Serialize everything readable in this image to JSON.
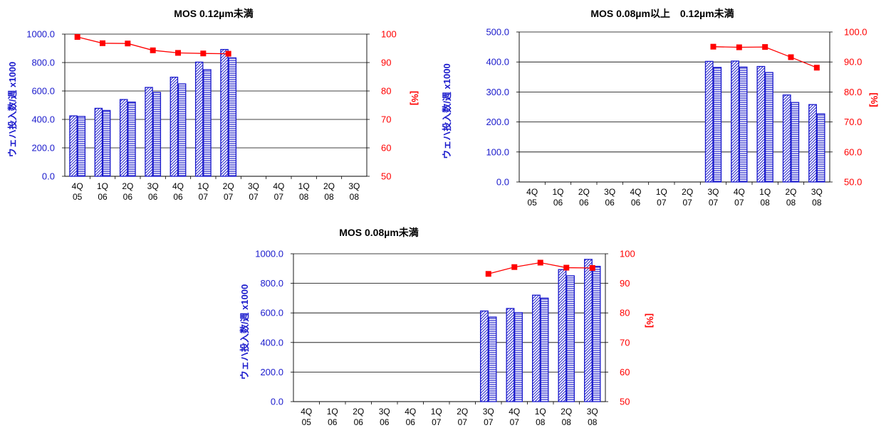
{
  "colors": {
    "bar_outline": "#1a1acc",
    "bar_fill": "#ffffff",
    "hatch": "#2222cc",
    "line": "#ff0000",
    "left_axis_text": "#1a1acc",
    "right_axis_text": "#ff0000",
    "grid": "#000000"
  },
  "chart_data": [
    {
      "type": "bar",
      "title": "MOS 0.12µm未満",
      "categories": [
        "4Q\n05",
        "1Q\n06",
        "2Q\n06",
        "3Q\n06",
        "4Q\n06",
        "1Q\n07",
        "2Q\n07",
        "3Q\n07",
        "4Q\n07",
        "1Q\n08",
        "2Q\n08",
        "3Q\n08"
      ],
      "ylabel": "ウェハ投入数/週 x1000",
      "y2label": "[%]",
      "ylim": [
        0,
        1000
      ],
      "yticks": [
        "0.0",
        "200.0",
        "400.0",
        "600.0",
        "800.0",
        "1000.0"
      ],
      "y2lim": [
        50,
        100
      ],
      "y2ticks": [
        "50",
        "60",
        "70",
        "80",
        "90",
        "100"
      ],
      "grid": true,
      "series": [
        {
          "kind": "bar",
          "pattern": "diagonal",
          "values": [
            425,
            478,
            540,
            625,
            697,
            803,
            892,
            null,
            null,
            null,
            null,
            null
          ]
        },
        {
          "kind": "bar",
          "pattern": "horizontal",
          "values": [
            421,
            463,
            522,
            590,
            650,
            750,
            833,
            null,
            null,
            null,
            null,
            null
          ]
        },
        {
          "kind": "line",
          "axis": "right",
          "values": [
            99.0,
            96.8,
            96.7,
            94.3,
            93.4,
            93.2,
            93.1,
            null,
            null,
            null,
            null,
            null
          ]
        }
      ]
    },
    {
      "type": "bar",
      "title": "MOS 0.08µm以上　0.12µm未満",
      "categories": [
        "4Q\n05",
        "1Q\n06",
        "2Q\n06",
        "3Q\n06",
        "4Q\n06",
        "1Q\n07",
        "2Q\n07",
        "3Q\n07",
        "4Q\n07",
        "1Q\n08",
        "2Q\n08",
        "3Q\n08"
      ],
      "ylabel": "ウェハ投入数/週 x1000",
      "y2label": "[%]",
      "ylim": [
        0,
        500
      ],
      "yticks": [
        "0.0",
        "100.0",
        "200.0",
        "300.0",
        "400.0",
        "500.0"
      ],
      "y2lim": [
        50,
        100
      ],
      "y2ticks": [
        "50.0",
        "60.0",
        "70.0",
        "80.0",
        "90.0",
        "100.0"
      ],
      "grid": true,
      "series": [
        {
          "kind": "bar",
          "pattern": "diagonal",
          "values": [
            null,
            null,
            null,
            null,
            null,
            null,
            null,
            402,
            403,
            385,
            290,
            258
          ]
        },
        {
          "kind": "bar",
          "pattern": "horizontal",
          "values": [
            null,
            null,
            null,
            null,
            null,
            null,
            null,
            382,
            383,
            365,
            265,
            227
          ]
        },
        {
          "kind": "line",
          "axis": "right",
          "values": [
            null,
            null,
            null,
            null,
            null,
            null,
            null,
            95.1,
            94.9,
            95.0,
            91.6,
            88.1
          ]
        }
      ]
    },
    {
      "type": "bar",
      "title": "MOS 0.08µm未満",
      "categories": [
        "4Q\n05",
        "1Q\n06",
        "2Q\n06",
        "3Q\n06",
        "4Q\n06",
        "1Q\n07",
        "2Q\n07",
        "3Q\n07",
        "4Q\n07",
        "1Q\n08",
        "2Q\n08",
        "3Q\n08"
      ],
      "ylabel": "ウェハ投入数/週 x1000",
      "y2label": "[%]",
      "ylim": [
        0,
        1000
      ],
      "yticks": [
        "0.0",
        "200.0",
        "400.0",
        "600.0",
        "800.0",
        "1000.0"
      ],
      "y2lim": [
        50,
        100
      ],
      "y2ticks": [
        "50",
        "60",
        "70",
        "80",
        "90",
        "100"
      ],
      "grid": true,
      "series": [
        {
          "kind": "bar",
          "pattern": "diagonal",
          "values": [
            null,
            null,
            null,
            null,
            null,
            null,
            null,
            613,
            630,
            720,
            893,
            962
          ]
        },
        {
          "kind": "bar",
          "pattern": "horizontal",
          "values": [
            null,
            null,
            null,
            null,
            null,
            null,
            null,
            572,
            602,
            700,
            851,
            915
          ]
        },
        {
          "kind": "line",
          "axis": "right",
          "values": [
            null,
            null,
            null,
            null,
            null,
            null,
            null,
            93.2,
            95.5,
            97.0,
            95.3,
            95.2
          ]
        }
      ]
    }
  ]
}
